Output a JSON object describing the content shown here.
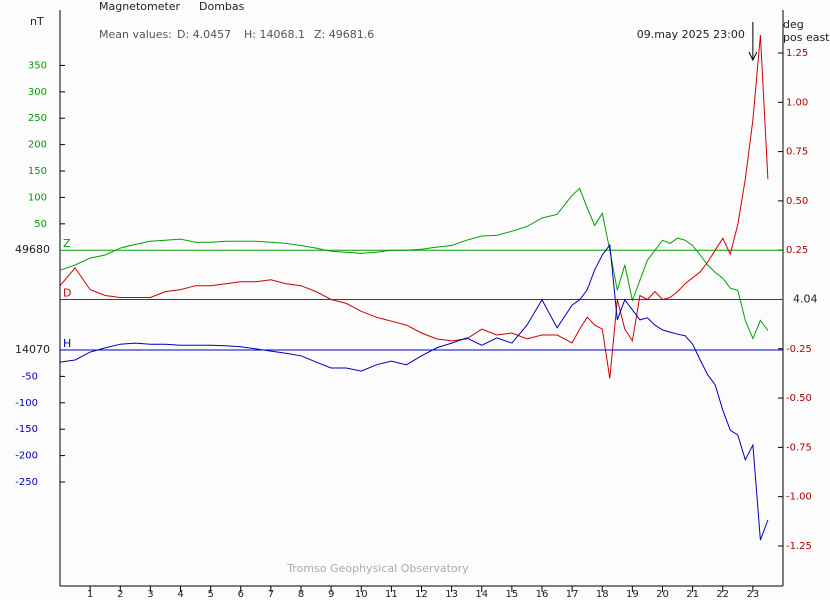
{
  "chart_data": {
    "type": "line",
    "title": "Magnetometer",
    "subtitle": "Dombas",
    "y_label": "nT",
    "y2_label": [
      "deg",
      "pos east"
    ],
    "mean_values": {
      "label": "Mean values:",
      "items": [
        "D: 4.0457",
        "H: 14068.1",
        "Z: 49681.6"
      ]
    },
    "annotation": {
      "text": "09.may 2025 23:00",
      "x": 23
    },
    "footer": "Tromso Geophysical Observatory",
    "xlim": [
      0,
      24
    ],
    "xticks": [
      1,
      2,
      3,
      4,
      5,
      6,
      7,
      8,
      9,
      10,
      11,
      12,
      13,
      14,
      15,
      16,
      17,
      18,
      19,
      20,
      21,
      22,
      23
    ],
    "x": [
      0,
      0.5,
      1,
      1.5,
      2,
      2.5,
      3,
      3.5,
      4,
      4.5,
      5,
      5.5,
      6,
      6.5,
      7,
      7.5,
      8,
      8.5,
      9,
      9.5,
      10,
      10.5,
      11,
      11.5,
      12,
      12.5,
      13,
      13.5,
      14,
      14.5,
      15,
      15.5,
      16,
      16.5,
      17,
      17.25,
      17.5,
      17.75,
      18,
      18.25,
      18.5,
      18.75,
      19,
      19.25,
      19.5,
      19.75,
      20,
      20.25,
      20.5,
      20.75,
      21,
      21.25,
      21.5,
      21.75,
      22,
      22.25,
      22.5,
      22.75,
      23,
      23.25,
      23.5
    ],
    "y2lim": [
      -1.453,
      1.468
    ],
    "y2ticks": [
      1.25,
      {
        "value": 1,
        "label": "1.00"
      },
      0.75,
      {
        "value": 0.5,
        "label": "0.50"
      },
      0.25,
      -0.25,
      {
        "value": -0.5,
        "label": "-0.50"
      },
      -0.75,
      {
        "value": -1,
        "label": "-1.00"
      },
      -1.25
    ],
    "series": [
      {
        "name": "Z",
        "color": "#00a000",
        "baseline_label": "49680",
        "ylim": [
          -636,
          455
        ],
        "yticks": [
          50,
          100,
          150,
          200,
          250,
          300,
          350
        ],
        "values": [
          -38,
          -28,
          -15,
          -9,
          4,
          11,
          17,
          19,
          21,
          15,
          15,
          17,
          17,
          17,
          15,
          13,
          9,
          4,
          -2,
          -4,
          -6,
          -4,
          0,
          0,
          2,
          6,
          9,
          19,
          27,
          28,
          36,
          45,
          61,
          68,
          104,
          117,
          80,
          47,
          70,
          0,
          -76,
          -28,
          -95,
          -57,
          -19,
          0,
          19,
          13,
          23,
          19,
          9,
          -9,
          -28,
          -42,
          -53,
          -72,
          -76,
          -133,
          -167,
          -133,
          -152
        ]
      },
      {
        "name": "D",
        "color": "#d00000",
        "baseline_label": "4.04",
        "axis": "y2",
        "values": [
          0.07,
          0.16,
          0.05,
          0.02,
          0.01,
          0.01,
          0.01,
          0.04,
          0.05,
          0.07,
          0.07,
          0.08,
          0.09,
          0.09,
          0.1,
          0.08,
          0.07,
          0.04,
          0,
          -0.02,
          -0.06,
          -0.09,
          -0.11,
          -0.13,
          -0.17,
          -0.2,
          -0.21,
          -0.2,
          -0.15,
          -0.18,
          -0.17,
          -0.2,
          -0.18,
          -0.18,
          -0.22,
          -0.15,
          -0.09,
          -0.13,
          -0.15,
          -0.4,
          0,
          -0.15,
          -0.21,
          0.02,
          0,
          0.04,
          0,
          0.01,
          0.04,
          0.08,
          0.11,
          0.14,
          0.19,
          0.25,
          0.31,
          0.23,
          0.38,
          0.61,
          0.91,
          1.34,
          0.61
        ]
      },
      {
        "name": "H",
        "color": "#0000c0",
        "baseline_label": "14070",
        "ylim": [
          -447,
          644
        ],
        "yticks": [
          -50,
          -100,
          -150,
          -200,
          -250
        ],
        "values": [
          -23,
          -19,
          -4,
          4,
          11,
          13,
          11,
          11,
          9,
          9,
          9,
          8,
          6,
          2,
          -2,
          -6,
          -11,
          -23,
          -34,
          -34,
          -40,
          -28,
          -21,
          -28,
          -11,
          4,
          13,
          23,
          9,
          23,
          13,
          47,
          95,
          42,
          85,
          95,
          114,
          152,
          180,
          199,
          57,
          95,
          76,
          57,
          61,
          47,
          38,
          34,
          30,
          27,
          11,
          -19,
          -47,
          -66,
          -114,
          -152,
          -161,
          -208,
          -180,
          -360,
          -322
        ]
      }
    ]
  }
}
